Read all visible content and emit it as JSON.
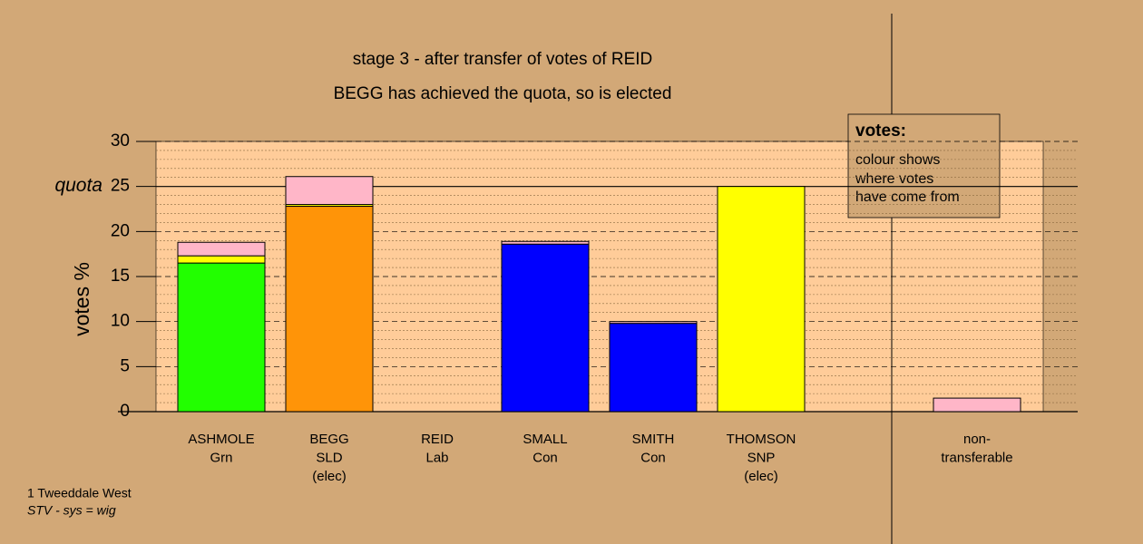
{
  "chart_data": {
    "type": "bar",
    "stacked": true,
    "title": "stage 3 - after transfer of votes of REID",
    "subtitle": "BEGG has achieved the quota, so is elected",
    "y_label": "votes %",
    "categories": [
      [
        "ASHMOLE",
        "Grn"
      ],
      [
        "BEGG",
        "SLD",
        "(elec)"
      ],
      [
        "REID",
        "Lab"
      ],
      [
        "SMALL",
        "Con"
      ],
      [
        "SMITH",
        "Con"
      ],
      [
        "THOMSON",
        "SNP",
        "(elec)"
      ],
      null,
      [
        "non-",
        "transferable"
      ]
    ],
    "series": [
      {
        "color": "#22ff00",
        "values": [
          16.5,
          0,
          0,
          0,
          0,
          0,
          null,
          0
        ]
      },
      {
        "color": "#ff9408",
        "values": [
          0,
          22.8,
          0,
          0,
          0,
          0,
          null,
          0
        ]
      },
      {
        "color": "#0000ff",
        "values": [
          0,
          0,
          0,
          18.6,
          9.8,
          0,
          null,
          0
        ]
      },
      {
        "color": "#ffff00",
        "values": [
          0.8,
          0.2,
          0,
          0,
          0,
          25.0,
          null,
          0
        ]
      },
      {
        "color": "#ffb6c8",
        "values": [
          1.5,
          3.1,
          0,
          0.3,
          0.2,
          0,
          null,
          1.5
        ]
      }
    ],
    "ylim": [
      0,
      30
    ],
    "yticks": [
      0,
      5,
      10,
      15,
      20,
      25,
      30
    ],
    "grid": true,
    "quota": {
      "value": 25,
      "label": "quota"
    },
    "note": {
      "title": "votes:",
      "lines": [
        "colour shows",
        "where votes",
        "have come from"
      ]
    },
    "footer": [
      "1 Tweeddale West",
      "STV - sys = wig"
    ]
  }
}
